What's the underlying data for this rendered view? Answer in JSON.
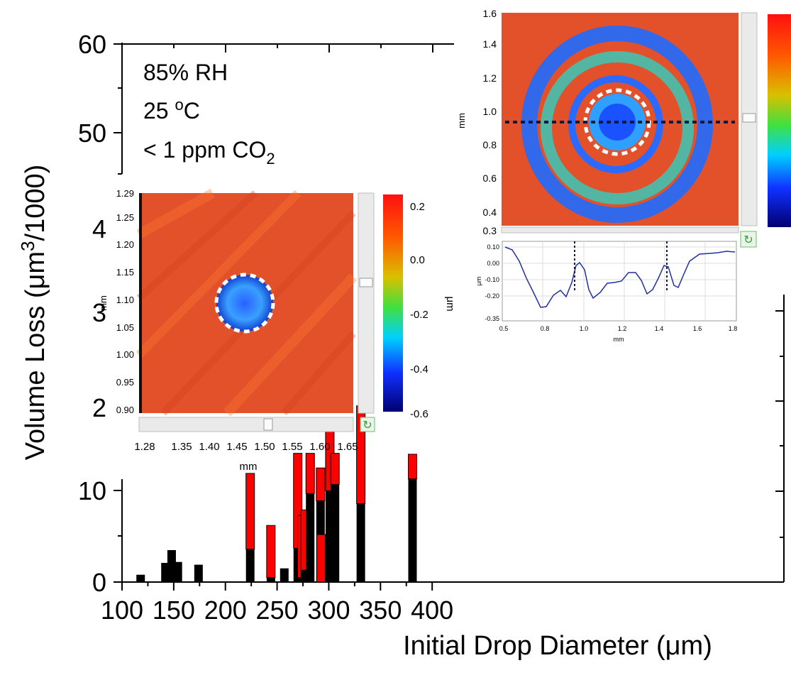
{
  "chart_data": {
    "type": "bar",
    "stacked": true,
    "xlabel": "Initial Drop Diameter (μm)",
    "ylabel_parts": {
      "pre": "Volume Loss (μm",
      "sup": "3",
      "post": "/1000)"
    },
    "x_ticks": [
      "100",
      "150",
      "200",
      "250",
      "300",
      "350",
      "400"
    ],
    "y_ticks_lower": [
      "0",
      "10"
    ],
    "y_ticks_mid": [
      "2",
      "3",
      "4"
    ],
    "y_ticks_upper": [
      "50",
      "60"
    ],
    "conditions": {
      "line1": "85% RH",
      "line2_pre": "25 ",
      "line2_sup": "o",
      "line2_post": "C",
      "line3_pre": "< 1 ppm CO",
      "line3_sub": "2"
    },
    "series": [
      {
        "color": "#000000"
      },
      {
        "color": "#ff0000"
      }
    ],
    "bars": [
      {
        "x": 118,
        "black": 0.8,
        "red": 0
      },
      {
        "x": 142,
        "black": 2.1,
        "red": 0
      },
      {
        "x": 148,
        "black": 3.5,
        "red": 0
      },
      {
        "x": 154,
        "black": 2.2,
        "red": 0
      },
      {
        "x": 174,
        "black": 1.9,
        "red": 0
      },
      {
        "x": 224,
        "black": 3.6,
        "red": 8.3
      },
      {
        "x": 244,
        "black": 0.5,
        "red": 5.7
      },
      {
        "x": 257,
        "black": 1.5,
        "red": 0
      },
      {
        "x": 270,
        "black": 3.7,
        "red": 10.4
      },
      {
        "x": 274,
        "black": 0.5,
        "red": 6.8
      },
      {
        "x": 277,
        "black": 1.3,
        "red": 6.6
      },
      {
        "x": 282,
        "black": 9.7,
        "red": 4.4
      },
      {
        "x": 292,
        "black": 8.9,
        "red": 3.6
      },
      {
        "x": 292.5,
        "black": 0,
        "red": 5.2
      },
      {
        "x": 301,
        "black": 10.0,
        "red": 7.4
      },
      {
        "x": 306,
        "black": 10.7,
        "red": 3.4
      },
      {
        "x": 331,
        "black": 8.6,
        "red": 10.7
      },
      {
        "x": 381,
        "black": 11.3,
        "red": 2.7
      }
    ],
    "inset_left": {
      "y_ticks": [
        "1.29",
        "1.25",
        "1.20",
        "1.15",
        "1.10",
        "1.05",
        "1.00",
        "0.95",
        "0.90"
      ],
      "x_ticks": [
        "1.28",
        "1.35",
        "1.40",
        "1.45",
        "1.50",
        "1.55",
        "1.60",
        "1.65"
      ],
      "x_unit": "mm",
      "y_unit": "mm",
      "colorbar_ticks": [
        "0.2",
        "0.0",
        "-0.2",
        "-0.4",
        "-0.6"
      ],
      "colorbar_unit": "μm"
    },
    "inset_right": {
      "y_ticks": [
        "1.6",
        "1.4",
        "1.2",
        "1.0",
        "0.8",
        "0.6",
        "0.4",
        "0.3"
      ],
      "y_unit": "mm"
    },
    "profile": {
      "y_ticks": [
        "0.10",
        "0.00",
        "-0.10",
        "-0.20",
        "-0.35"
      ],
      "x_ticks": [
        "0.5",
        "0.8",
        "1.0",
        "1.2",
        "1.4",
        "1.6",
        "1.8"
      ],
      "x_unit": "mm",
      "y_unit": "μm"
    }
  }
}
